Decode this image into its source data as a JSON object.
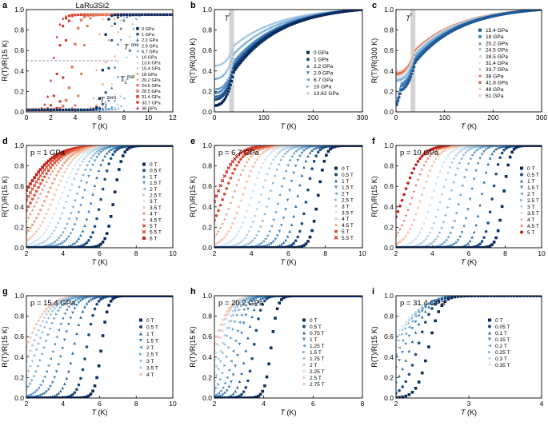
{
  "figure": {
    "panels": [
      "a",
      "b",
      "c",
      "d",
      "e",
      "f",
      "g",
      "h",
      "i"
    ]
  },
  "chart_data": [
    {
      "id": "a",
      "type": "scatter",
      "title": "LaRu3Si2",
      "xlabel": "T (K)",
      "ylabel": "R(T)/R(15 K)",
      "xlim": [
        0,
        12
      ],
      "ylim": [
        0,
        1.0
      ],
      "xticks": [
        0,
        2,
        4,
        6,
        8,
        10,
        12
      ],
      "yticks": [
        0,
        0.2,
        0.4,
        0.6,
        0.8,
        1.0
      ],
      "legend": [
        "0 GPa",
        "1 GPa",
        "2.2 GPa",
        "2.9 GPa",
        "6.7 GPa",
        "10 GPa",
        "13.6 GPa",
        "15.4 GPa",
        "18 GPa",
        "20.2 GPa",
        "24.6 GPa",
        "28.5 GPa",
        "31.4 GPa",
        "33.7 GPa",
        "38 GPa"
      ],
      "tc_values": [
        6.3,
        6.8,
        7.3,
        7.6,
        8.4,
        8.2,
        7.5,
        7.2,
        6.5,
        5.8,
        4.6,
        3.8,
        3.1,
        2.6,
        2.2
      ],
      "annotations": [
        "Tc ons",
        "Tc mid",
        "Tc zero"
      ]
    },
    {
      "id": "b",
      "type": "line",
      "xlabel": "T (K)",
      "ylabel": "R(T)/R(300 K)",
      "xlim": [
        0,
        300
      ],
      "ylim": [
        0,
        1.0
      ],
      "xticks": [
        0,
        100,
        200,
        300
      ],
      "yticks": [
        0,
        0.2,
        0.4,
        0.6,
        0.8,
        1.0
      ],
      "marker": "T*",
      "marker_range_K": [
        30,
        40
      ],
      "legend": [
        "0 GPa",
        "1 GPa",
        "2.2 GPa",
        "2.9 GPa",
        "6.7 GPa",
        "10 GPa",
        "13.62 GPa"
      ],
      "residual_ratio": [
        0.06,
        0.12,
        0.15,
        0.18,
        0.22,
        0.32,
        0.45
      ]
    },
    {
      "id": "c",
      "type": "line",
      "xlabel": "T (K)",
      "ylabel": "R(T)/R(300 K)",
      "xlim": [
        0,
        300
      ],
      "ylim": [
        0,
        1.0
      ],
      "xticks": [
        0,
        100,
        200,
        300
      ],
      "yticks": [
        0,
        0.2,
        0.4,
        0.6,
        0.8,
        1.0
      ],
      "marker": "T*",
      "marker_range_K": [
        30,
        40
      ],
      "legend": [
        "15.4 GPa",
        "18 GPa",
        "20.2 GPa",
        "24.5 GPa",
        "28.5 GPa",
        "31.4 GPa",
        "33.7 GPa",
        "38 GPa",
        "41.8 GPa",
        "48 GPa",
        "51 GPa"
      ],
      "residual_ratio": [
        0.2,
        0.24,
        0.27,
        0.3,
        0.32,
        0.34,
        0.35,
        0.36,
        0.37,
        0.38,
        0.39
      ]
    },
    {
      "id": "d",
      "type": "scatter",
      "title": "p = 1 GPa",
      "xlabel": "T (K)",
      "ylabel": "R(T)/R(15 K)",
      "xlim": [
        2,
        10
      ],
      "ylim": [
        0,
        1.0
      ],
      "xticks": [
        2,
        4,
        6,
        8,
        10
      ],
      "yticks": [
        0,
        0.2,
        0.4,
        0.6,
        0.8,
        1.0
      ],
      "legend": [
        "0 T",
        "0.5 T",
        "1 T",
        "1.5 T",
        "2 T",
        "2.5 T",
        "3 T",
        "3.5 T",
        "4 T",
        "4.5 T",
        "5 T",
        "5.5 T",
        "6 T"
      ],
      "tc_values": [
        6.8,
        6.1,
        5.6,
        5.1,
        4.7,
        4.3,
        3.9,
        3.5,
        3.1,
        2.7,
        2.4,
        2.1,
        1.8
      ]
    },
    {
      "id": "e",
      "type": "scatter",
      "title": "p = 6.7 GPa",
      "xlabel": "T (K)",
      "ylabel": "R(T)/R(15 K)",
      "xlim": [
        2,
        10
      ],
      "ylim": [
        0,
        1.0
      ],
      "xticks": [
        2,
        4,
        6,
        8,
        10
      ],
      "yticks": [
        0,
        0.2,
        0.4,
        0.6,
        0.8,
        1.0
      ],
      "legend": [
        "0 T",
        "0.5 T",
        "1 T",
        "1.5 T",
        "2 T",
        "2.5 T",
        "3 T",
        "3.5 T",
        "4 T",
        "4.5 T",
        "5 T",
        "5.5 T"
      ],
      "tc_values": [
        7.6,
        7.0,
        6.5,
        6.0,
        5.5,
        5.0,
        4.5,
        4.0,
        3.5,
        3.0,
        2.5,
        2.1
      ]
    },
    {
      "id": "f",
      "type": "scatter",
      "title": "p = 10 GPa",
      "xlabel": "T (K)",
      "ylabel": "R(T)/R(15 K)",
      "xlim": [
        2,
        10
      ],
      "ylim": [
        0,
        1.0
      ],
      "xticks": [
        2,
        4,
        6,
        8,
        10
      ],
      "yticks": [
        0,
        0.2,
        0.4,
        0.6,
        0.8,
        1.0
      ],
      "legend": [
        "0 T",
        "0.5 T",
        "1 T",
        "1.5 T",
        "2 T",
        "2.5 T",
        "3 T",
        "3.5 T",
        "4 T",
        "4.5 T",
        "5 T"
      ],
      "tc_values": [
        7.9,
        7.3,
        6.7,
        6.1,
        5.5,
        5.0,
        4.5,
        4.0,
        3.4,
        2.9,
        2.4
      ]
    },
    {
      "id": "g",
      "type": "scatter",
      "title": "p = 15.4 GPa",
      "xlabel": "T (K)",
      "ylabel": "R(T)/R(15 K)",
      "xlim": [
        2,
        10
      ],
      "ylim": [
        0,
        1.0
      ],
      "xticks": [
        2,
        4,
        6,
        8,
        10
      ],
      "yticks": [
        0,
        0.2,
        0.4,
        0.6,
        0.8,
        1.0
      ],
      "legend": [
        "0 T",
        "0.5 T",
        "1 T",
        "1.5 T",
        "2 T",
        "2.5 T",
        "3 T",
        "3.5 T",
        "4 T"
      ],
      "tc_values": [
        6.1,
        5.3,
        4.6,
        4.0,
        3.5,
        3.0,
        2.6,
        2.3,
        2.0
      ]
    },
    {
      "id": "h",
      "type": "scatter",
      "title": "p = 20.2 GPa",
      "xlabel": "T (K)",
      "ylabel": "R(T)/R(15 K)",
      "xlim": [
        2,
        8
      ],
      "ylim": [
        0,
        1.0
      ],
      "xticks": [
        2,
        4,
        6,
        8
      ],
      "yticks": [
        0,
        0.2,
        0.4,
        0.6,
        0.8,
        1.0
      ],
      "legend": [
        "0 T",
        "0.5 T",
        "0.75 T",
        "1 T",
        "1.25 T",
        "1.5 T",
        "1.75 T",
        "2 T",
        "2.25 T",
        "2.5 T",
        "2.75 T"
      ],
      "tc_values": [
        4.3,
        3.6,
        3.3,
        3.0,
        2.8,
        2.6,
        2.4,
        2.3,
        2.15,
        2.05,
        1.95
      ]
    },
    {
      "id": "i",
      "type": "scatter",
      "title": "p = 31.4 GPa",
      "xlabel": "T (K)",
      "ylabel": "R(T)/R(15 K)",
      "xlim": [
        2,
        4
      ],
      "ylim": [
        0,
        1.0
      ],
      "xticks": [
        2,
        3,
        4
      ],
      "yticks": [
        0,
        0.2,
        0.4,
        0.6,
        0.8,
        1.0
      ],
      "legend": [
        "0 T",
        "0.05 T",
        "0.1 T",
        "0.15 T",
        "0.2 T",
        "0.25 T",
        "0.3 T",
        "0.35 T"
      ],
      "tc_values": [
        2.45,
        2.3,
        2.2,
        2.12,
        2.05,
        2.0,
        1.95,
        1.9
      ]
    }
  ]
}
